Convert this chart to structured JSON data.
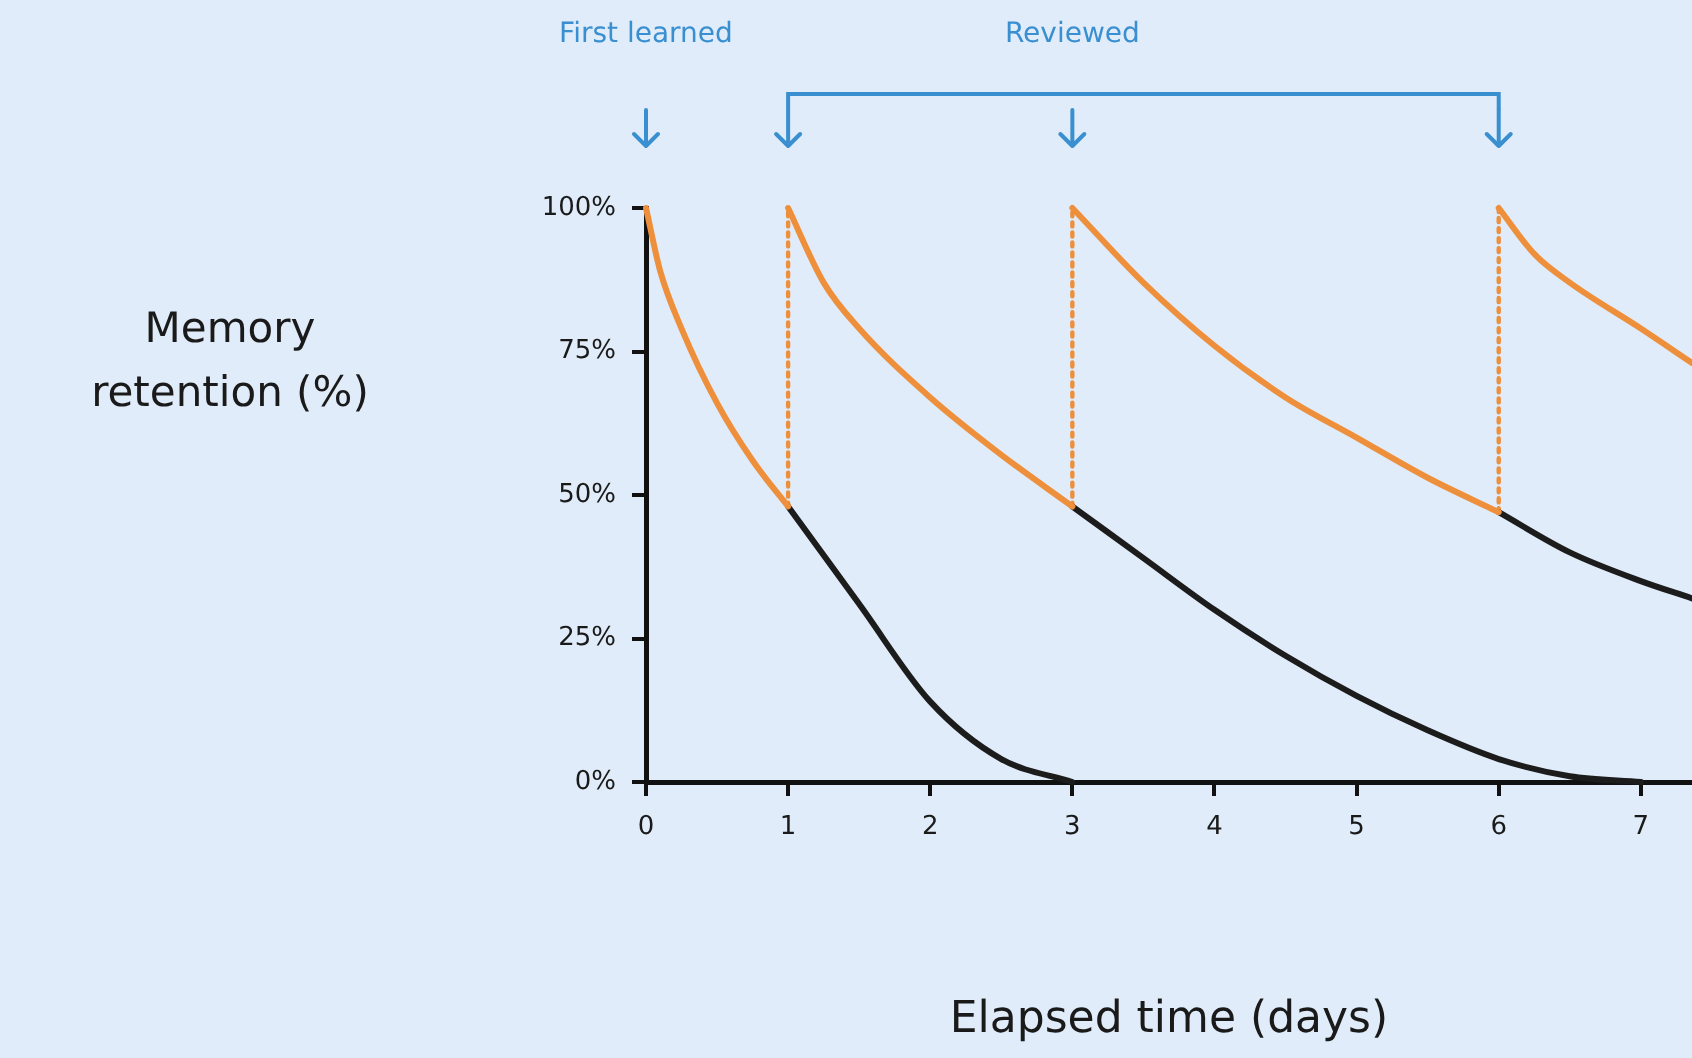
{
  "chart_data": {
    "type": "line",
    "xlabel": "Elapsed time (days)",
    "ylabel": "Memory retention (%)",
    "xlim": [
      0,
      7.36
    ],
    "xticks": [
      0,
      1,
      2,
      3,
      4,
      5,
      6,
      7
    ],
    "ylim": [
      0,
      100
    ],
    "yticks": [
      {
        "value": 0,
        "label": "0%"
      },
      {
        "value": 25,
        "label": "25%"
      },
      {
        "value": 50,
        "label": "50%"
      },
      {
        "value": 75,
        "label": "75%"
      },
      {
        "value": 100,
        "label": "100%"
      }
    ],
    "grid": false,
    "legend": false,
    "marker": "none",
    "annotations": [
      "First learned",
      "Reviewed"
    ],
    "series": [
      {
        "color": "#ee8f3c",
        "x": [
          0,
          0.1,
          0.25,
          0.5,
          0.75,
          1
        ],
        "values": [
          100,
          89,
          79,
          66,
          56,
          48
        ]
      },
      {
        "color": "#ee8f3c",
        "x": [
          1,
          1.25,
          1.5,
          2,
          2.5,
          3
        ],
        "values": [
          100,
          87,
          79,
          67,
          57,
          48
        ]
      },
      {
        "color": "#ee8f3c",
        "x": [
          3,
          3.5,
          4,
          4.5,
          5,
          5.5,
          6
        ],
        "values": [
          100,
          87,
          76,
          67,
          60,
          53,
          47
        ]
      },
      {
        "color": "#ee8f3c",
        "x": [
          6,
          6.25,
          6.5,
          7,
          7.36
        ],
        "values": [
          100,
          92,
          87,
          79,
          73
        ]
      },
      {
        "color": "#1c1c1c",
        "x": [
          1,
          1.5,
          2,
          2.5,
          3
        ],
        "values": [
          48,
          31,
          14,
          4,
          0
        ]
      },
      {
        "color": "#1c1c1c",
        "x": [
          3,
          3.5,
          4,
          4.5,
          5,
          5.5,
          6,
          6.5,
          7
        ],
        "values": [
          48,
          39,
          30,
          22,
          15,
          9,
          4,
          1,
          0
        ]
      },
      {
        "color": "#1c1c1c",
        "x": [
          6,
          6.5,
          7,
          7.36
        ],
        "values": [
          47,
          40,
          35,
          32
        ]
      },
      {
        "color": "#ee8f3c",
        "line_style": "dotted",
        "x": [
          1,
          1
        ],
        "values": [
          48,
          100
        ]
      },
      {
        "color": "#ee8f3c",
        "line_style": "dotted",
        "x": [
          3,
          3
        ],
        "values": [
          48,
          100
        ]
      },
      {
        "color": "#ee8f3c",
        "line_style": "dotted",
        "x": [
          6,
          6
        ],
        "values": [
          47,
          100
        ]
      }
    ]
  }
}
